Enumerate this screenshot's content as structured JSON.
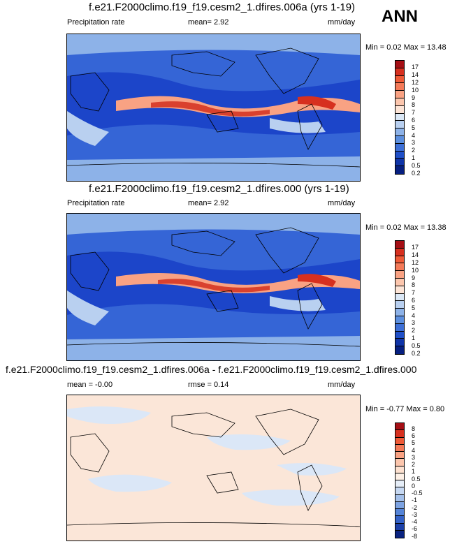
{
  "season": "ANN",
  "panels": [
    {
      "title": "f.e21.F2000climo.f19_f19.cesm2_1.dfires.006a (yrs 1-19)",
      "left_label": "Precipitation rate",
      "mid_label": "mean=  2.92",
      "units": "mm/day",
      "minmax": "Min =  0.02 Max = 13.48",
      "levels": [
        "17",
        "14",
        "12",
        "10",
        "9",
        "8",
        "7",
        "6",
        "5",
        "4",
        "3",
        "2",
        "1",
        "0.5",
        "0.2"
      ],
      "colors": [
        "#a50f15",
        "#d7301f",
        "#ef5a37",
        "#f47a58",
        "#f9a283",
        "#fcc6ad",
        "#fde5d7",
        "#dbe8f6",
        "#b9d0f0",
        "#8db2e8",
        "#5c8fdf",
        "#3d6fd6",
        "#1f4fc8",
        "#0f34a8",
        "#061f80"
      ]
    },
    {
      "title": "f.e21.F2000climo.f19_f19.cesm2_1.dfires.000 (yrs 1-19)",
      "left_label": "Precipitation rate",
      "mid_label": "mean=  2.92",
      "units": "mm/day",
      "minmax": "Min =  0.02 Max = 13.38",
      "levels": [
        "17",
        "14",
        "12",
        "10",
        "9",
        "8",
        "7",
        "6",
        "5",
        "4",
        "3",
        "2",
        "1",
        "0.5",
        "0.2"
      ],
      "colors": [
        "#a50f15",
        "#d7301f",
        "#ef5a37",
        "#f47a58",
        "#f9a283",
        "#fcc6ad",
        "#fde5d7",
        "#dbe8f6",
        "#b9d0f0",
        "#8db2e8",
        "#5c8fdf",
        "#3d6fd6",
        "#1f4fc8",
        "#0f34a8",
        "#061f80"
      ]
    },
    {
      "title": "f.e21.F2000climo.f19_f19.cesm2_1.dfires.006a - f.e21.F2000climo.f19_f19.cesm2_1.dfires.000",
      "left_label": "mean = -0.00",
      "mid_label": "rmse =  0.14",
      "units": "mm/day",
      "minmax": "Min = -0.77 Max =  0.80",
      "levels": [
        "8",
        "6",
        "5",
        "4",
        "3",
        "2",
        "1",
        "0.5",
        "0",
        "-0.5",
        "-1",
        "-2",
        "-3",
        "-4",
        "-6",
        "-8"
      ],
      "colors": [
        "#a50f15",
        "#d7301f",
        "#ef5a37",
        "#f47a58",
        "#f9a283",
        "#fcc6ad",
        "#fde1d0",
        "#fdf0e6",
        "#e6eef8",
        "#c6d8f2",
        "#a4c0ea",
        "#7da3e2",
        "#5584d8",
        "#3462c8",
        "#1c40a8",
        "#0a2380"
      ]
    }
  ],
  "colors": {
    "ocean_deep": "#1c45c9",
    "ocean_mid": "#3565d6",
    "itcz": "#f08a62",
    "itcz_core": "#d9412e",
    "dry": "#d6e4f5",
    "diff_bg": "#fbe6d8",
    "diff_blue": "#dbe7f7"
  }
}
